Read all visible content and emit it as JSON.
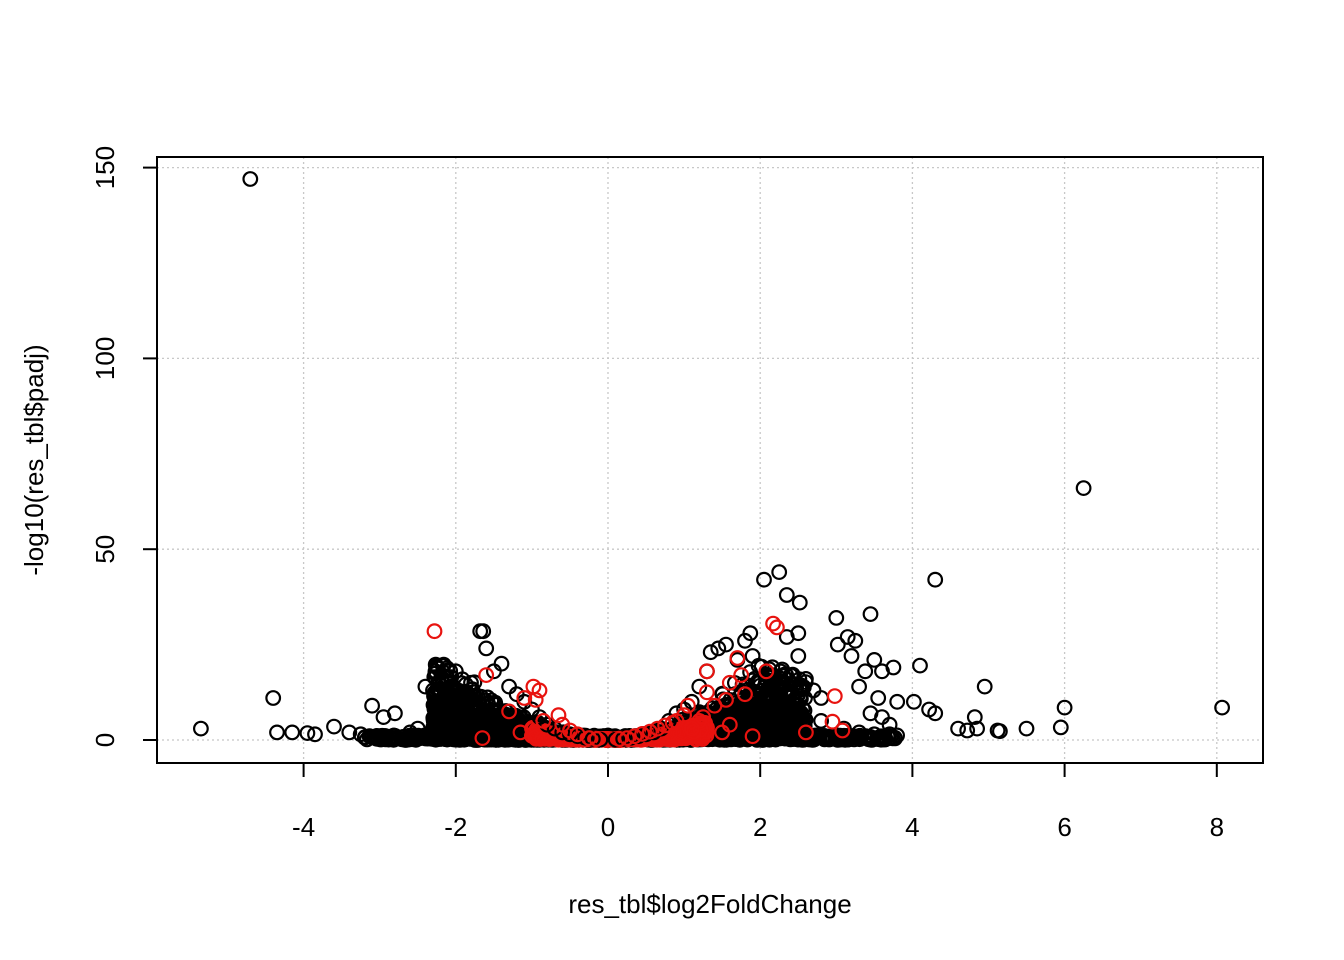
{
  "chart_data": {
    "type": "scatter",
    "title": "",
    "xlabel": "res_tbl$log2FoldChange",
    "ylabel": "-log10(res_tbl$padj)",
    "xlim": [
      -5.4,
      8.1
    ],
    "ylim": [
      -6,
      153
    ],
    "x_ticks": [
      -4,
      -2,
      0,
      2,
      4,
      6,
      8
    ],
    "x_tick_labels": [
      "-4",
      "-2",
      "0",
      "2",
      "4",
      "6",
      "8"
    ],
    "y_ticks": [
      0,
      50,
      100,
      150
    ],
    "y_tick_labels": [
      "0",
      "50",
      "100",
      "150"
    ],
    "grid": true,
    "legend": "none",
    "colors": {
      "default": "#000000",
      "highlight": "#e8130f",
      "grid": "#c8c8c8"
    },
    "series": [
      {
        "color": "#000000",
        "points": [
          [
            -4.7,
            147
          ],
          [
            6.25,
            66
          ],
          [
            -5.35,
            3
          ],
          [
            -4.4,
            11
          ],
          [
            -4.35,
            2
          ],
          [
            -4.15,
            2
          ],
          [
            -3.95,
            1.8
          ],
          [
            -3.85,
            1.5
          ],
          [
            -3.6,
            3.5
          ],
          [
            -3.4,
            2
          ],
          [
            -3.25,
            1.5
          ],
          [
            -3.1,
            9
          ],
          [
            -2.95,
            6
          ],
          [
            -2.8,
            7
          ],
          [
            -2.6,
            2
          ],
          [
            -2.4,
            14
          ],
          [
            -2.3,
            13
          ],
          [
            -2.25,
            10
          ],
          [
            -2.1,
            9
          ],
          [
            -2.0,
            18
          ],
          [
            -1.9,
            12
          ],
          [
            -1.8,
            15
          ],
          [
            -1.68,
            28.5
          ],
          [
            -1.64,
            28.5
          ],
          [
            -1.6,
            24
          ],
          [
            -1.5,
            18
          ],
          [
            -1.4,
            20
          ],
          [
            -1.3,
            14
          ],
          [
            -1.2,
            12
          ],
          [
            -1.1,
            10
          ],
          [
            -1.0,
            8
          ],
          [
            -0.9,
            6
          ],
          [
            -0.8,
            4
          ],
          [
            -0.7,
            3
          ],
          [
            -0.6,
            2
          ],
          [
            -0.5,
            1.5
          ],
          [
            -0.4,
            1
          ],
          [
            -0.3,
            0.6
          ],
          [
            -0.2,
            0.3
          ],
          [
            -0.1,
            0.1
          ],
          [
            0.1,
            0.1
          ],
          [
            0.2,
            0.3
          ],
          [
            0.3,
            0.6
          ],
          [
            0.4,
            1
          ],
          [
            0.5,
            1.5
          ],
          [
            0.6,
            2
          ],
          [
            0.7,
            3
          ],
          [
            0.8,
            5
          ],
          [
            0.9,
            7
          ],
          [
            1.0,
            8
          ],
          [
            1.1,
            10
          ],
          [
            1.2,
            14
          ],
          [
            1.3,
            18
          ],
          [
            1.35,
            23
          ],
          [
            1.45,
            24
          ],
          [
            1.55,
            25
          ],
          [
            1.7,
            21
          ],
          [
            1.8,
            26
          ],
          [
            1.87,
            28
          ],
          [
            1.9,
            22
          ],
          [
            2.05,
            42
          ],
          [
            2.25,
            44
          ],
          [
            2.35,
            38
          ],
          [
            2.52,
            36
          ],
          [
            2.5,
            28
          ],
          [
            2.35,
            27
          ],
          [
            2.5,
            22
          ],
          [
            2.6,
            16
          ],
          [
            2.7,
            13
          ],
          [
            2.8,
            11
          ],
          [
            3.0,
            32
          ],
          [
            3.15,
            27
          ],
          [
            3.25,
            26
          ],
          [
            3.02,
            25
          ],
          [
            3.2,
            22
          ],
          [
            3.45,
            33
          ],
          [
            3.5,
            21
          ],
          [
            3.38,
            18
          ],
          [
            3.6,
            18
          ],
          [
            3.75,
            19
          ],
          [
            3.3,
            14
          ],
          [
            3.55,
            11
          ],
          [
            3.8,
            10
          ],
          [
            3.45,
            7
          ],
          [
            3.6,
            6
          ],
          [
            3.7,
            4
          ],
          [
            4.02,
            10
          ],
          [
            4.1,
            19.5
          ],
          [
            4.22,
            8
          ],
          [
            4.3,
            42
          ],
          [
            4.3,
            7
          ],
          [
            4.6,
            3
          ],
          [
            4.72,
            2.5
          ],
          [
            4.82,
            6
          ],
          [
            4.85,
            3
          ],
          [
            4.95,
            14
          ],
          [
            5.12,
            2.5
          ],
          [
            5.15,
            2.3
          ],
          [
            5.5,
            3
          ],
          [
            5.95,
            3.3
          ],
          [
            6.0,
            8.5
          ],
          [
            8.07,
            8.5
          ],
          [
            2.0,
            5
          ],
          [
            2.2,
            3
          ],
          [
            2.4,
            8
          ],
          [
            2.8,
            5
          ],
          [
            3.1,
            3
          ],
          [
            3.3,
            2
          ],
          [
            3.5,
            1.5
          ],
          [
            3.7,
            1.5
          ],
          [
            -3.0,
            1
          ],
          [
            -2.5,
            3
          ],
          [
            -2.2,
            5
          ],
          [
            -1.9,
            7
          ]
        ]
      },
      {
        "color": "#e8130f",
        "points": [
          [
            -2.28,
            28.5
          ],
          [
            2.17,
            30.5
          ],
          [
            2.22,
            29.5
          ],
          [
            -1.6,
            17
          ],
          [
            -1.65,
            0.5
          ],
          [
            -1.3,
            7.5
          ],
          [
            -1.1,
            11
          ],
          [
            -0.98,
            14
          ],
          [
            -0.9,
            13
          ],
          [
            -0.95,
            10.5
          ],
          [
            -1.15,
            2
          ],
          [
            -0.85,
            5
          ],
          [
            -0.65,
            6.5
          ],
          [
            -0.6,
            4
          ],
          [
            -0.5,
            2.5
          ],
          [
            -0.4,
            1.5
          ],
          [
            1.3,
            18
          ],
          [
            1.7,
            21.5
          ],
          [
            1.75,
            17
          ],
          [
            1.6,
            15
          ],
          [
            2.08,
            18
          ],
          [
            1.8,
            12
          ],
          [
            1.55,
            10.5
          ],
          [
            1.4,
            9
          ],
          [
            1.3,
            12.5
          ],
          [
            1.25,
            6
          ],
          [
            1.2,
            5
          ],
          [
            1.05,
            9
          ],
          [
            1.0,
            6.5
          ],
          [
            0.9,
            5
          ],
          [
            0.85,
            4.5
          ],
          [
            0.75,
            3.8
          ],
          [
            0.65,
            3
          ],
          [
            0.55,
            2.2
          ],
          [
            0.45,
            1.6
          ],
          [
            0.35,
            1
          ],
          [
            0.25,
            0.5
          ],
          [
            0.15,
            0.25
          ],
          [
            -0.15,
            0.25
          ],
          [
            -0.25,
            0.5
          ],
          [
            2.98,
            11.5
          ],
          [
            2.95,
            4.8
          ],
          [
            3.08,
            2.5
          ],
          [
            2.6,
            2
          ],
          [
            1.9,
            1
          ],
          [
            1.1,
            3
          ],
          [
            1.6,
            4
          ],
          [
            1.5,
            2
          ]
        ]
      }
    ]
  }
}
